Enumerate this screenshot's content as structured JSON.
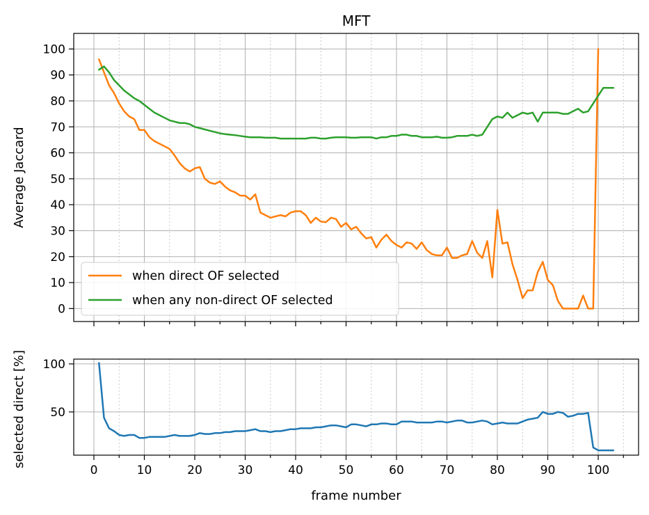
{
  "chart_data": [
    {
      "type": "line",
      "title": "MFT",
      "xlabel": "",
      "ylabel": "Average Jaccard",
      "xlim": [
        -4,
        108
      ],
      "ylim": [
        -5,
        106
      ],
      "xticks": [
        0,
        10,
        20,
        30,
        40,
        50,
        60,
        70,
        80,
        90,
        100
      ],
      "yticks": [
        0,
        10,
        20,
        30,
        40,
        50,
        60,
        70,
        80,
        90,
        100
      ],
      "grid": true,
      "legend": "lower-left",
      "series": [
        {
          "name": "when direct OF selected",
          "color": "#ff7f0e",
          "x": [
            1,
            2,
            3,
            4,
            5,
            6,
            7,
            8,
            9,
            10,
            11,
            12,
            13,
            14,
            15,
            16,
            17,
            18,
            19,
            20,
            21,
            22,
            23,
            24,
            25,
            26,
            27,
            28,
            29,
            30,
            31,
            32,
            33,
            34,
            35,
            36,
            37,
            38,
            39,
            40,
            41,
            42,
            43,
            44,
            45,
            46,
            47,
            48,
            49,
            50,
            51,
            52,
            53,
            54,
            55,
            56,
            57,
            58,
            59,
            60,
            61,
            62,
            63,
            64,
            65,
            66,
            67,
            68,
            69,
            70,
            71,
            72,
            73,
            74,
            75,
            76,
            77,
            78,
            79,
            80,
            81,
            82,
            83,
            84,
            85,
            86,
            87,
            88,
            89,
            90,
            91,
            92,
            93,
            94,
            95,
            96,
            97,
            98,
            99,
            100
          ],
          "y": [
            96,
            91,
            86,
            83,
            79,
            76,
            74,
            73,
            68.8,
            68.8,
            66,
            64.5,
            63.5,
            62.5,
            61.5,
            59,
            56,
            54,
            52.8,
            54,
            54.5,
            50,
            48.5,
            48,
            49,
            47,
            45.5,
            44.8,
            43.5,
            43.5,
            42,
            44,
            37,
            36,
            35,
            35.5,
            36,
            35.5,
            37,
            37.5,
            37.5,
            36,
            33,
            35,
            33.5,
            33.3,
            35,
            34.5,
            31.5,
            33,
            30.5,
            31.5,
            29,
            27,
            27.5,
            23.5,
            26.5,
            28.5,
            26,
            24.5,
            23.5,
            25.5,
            25,
            23,
            25.5,
            22.5,
            21,
            20.5,
            20.5,
            23.5,
            19.5,
            19.5,
            20.5,
            21,
            26,
            21.5,
            19.5,
            26,
            12,
            38,
            25,
            25.5,
            17,
            11,
            4,
            7,
            7,
            14,
            18,
            11,
            9,
            3,
            0,
            0,
            0,
            0,
            5,
            0,
            0,
            100
          ]
        },
        {
          "name": "when any non-direct OF selected",
          "color": "#2ca02c",
          "x": [
            1,
            2,
            3,
            4,
            5,
            6,
            7,
            8,
            9,
            10,
            11,
            12,
            13,
            14,
            15,
            16,
            17,
            18,
            19,
            20,
            21,
            22,
            23,
            24,
            25,
            26,
            27,
            28,
            29,
            30,
            31,
            32,
            33,
            34,
            35,
            36,
            37,
            38,
            39,
            40,
            41,
            42,
            43,
            44,
            45,
            46,
            47,
            48,
            49,
            50,
            51,
            52,
            53,
            54,
            55,
            56,
            57,
            58,
            59,
            60,
            61,
            62,
            63,
            64,
            65,
            66,
            67,
            68,
            69,
            70,
            71,
            72,
            73,
            74,
            75,
            76,
            77,
            78,
            79,
            80,
            81,
            82,
            83,
            84,
            85,
            86,
            87,
            88,
            89,
            90,
            91,
            92,
            93,
            94,
            95,
            96,
            97,
            98,
            99,
            100,
            101,
            102,
            103
          ],
          "y": [
            92,
            93.3,
            91,
            88,
            86,
            84,
            82.5,
            81,
            80,
            78.5,
            77,
            75.5,
            74.5,
            73.5,
            72.5,
            72,
            71.5,
            71.5,
            71,
            70,
            69.5,
            69,
            68.5,
            68,
            67.5,
            67.2,
            67,
            66.8,
            66.5,
            66.2,
            66,
            66,
            66,
            65.8,
            65.8,
            65.8,
            65.5,
            65.5,
            65.5,
            65.5,
            65.5,
            65.5,
            65.8,
            65.8,
            65.5,
            65.5,
            65.8,
            66,
            66,
            66,
            65.8,
            65.8,
            66,
            66,
            66,
            65.5,
            66,
            66,
            66.5,
            66.5,
            67,
            67,
            66.5,
            66.5,
            66,
            66,
            66,
            66.2,
            65.8,
            65.8,
            66,
            66.5,
            66.5,
            66.5,
            67,
            66.5,
            67,
            70,
            73,
            74,
            73.5,
            75.5,
            73.5,
            74.5,
            75.5,
            75,
            75.5,
            72,
            75.5,
            75.5,
            75.5,
            75.5,
            75,
            75,
            76,
            77,
            75.5,
            76,
            79,
            82,
            85,
            85,
            85
          ]
        }
      ]
    },
    {
      "type": "line",
      "title": "",
      "xlabel": "frame number",
      "ylabel": "selected direct [%]",
      "xlim": [
        -4,
        108
      ],
      "ylim": [
        5,
        105
      ],
      "xticks": [
        0,
        10,
        20,
        30,
        40,
        50,
        60,
        70,
        80,
        90,
        100
      ],
      "yticks": [
        50,
        100
      ],
      "grid": true,
      "series": [
        {
          "name": "selected direct",
          "color": "#1f77b4",
          "x": [
            1,
            2,
            3,
            4,
            5,
            6,
            7,
            8,
            9,
            10,
            11,
            12,
            13,
            14,
            15,
            16,
            17,
            18,
            19,
            20,
            21,
            22,
            23,
            24,
            25,
            26,
            27,
            28,
            29,
            30,
            31,
            32,
            33,
            34,
            35,
            36,
            37,
            38,
            39,
            40,
            41,
            42,
            43,
            44,
            45,
            46,
            47,
            48,
            49,
            50,
            51,
            52,
            53,
            54,
            55,
            56,
            57,
            58,
            59,
            60,
            61,
            62,
            63,
            64,
            65,
            66,
            67,
            68,
            69,
            70,
            71,
            72,
            73,
            74,
            75,
            76,
            77,
            78,
            79,
            80,
            81,
            82,
            83,
            84,
            85,
            86,
            87,
            88,
            89,
            90,
            91,
            92,
            93,
            94,
            95,
            96,
            97,
            98,
            99,
            100,
            101,
            102,
            103
          ],
          "y": [
            101,
            44,
            33,
            30,
            26,
            25,
            26,
            26,
            23,
            23,
            24,
            24,
            24,
            24,
            25,
            26,
            25,
            25,
            25,
            26,
            28,
            27,
            27,
            28,
            28,
            29,
            29,
            30,
            30,
            30,
            31,
            32,
            30,
            30,
            29,
            30,
            30,
            31,
            32,
            32,
            33,
            33,
            33,
            34,
            34,
            35,
            36,
            36,
            35,
            34,
            37,
            37,
            36,
            35,
            37,
            37,
            38,
            38,
            37,
            37,
            40,
            40,
            40,
            39,
            39,
            39,
            39,
            40,
            40,
            39,
            40,
            41,
            41,
            39,
            39,
            40,
            41,
            40,
            37,
            38,
            39,
            38,
            38,
            38,
            40,
            42,
            43,
            44,
            50,
            48,
            48,
            50,
            49,
            45,
            46,
            48,
            48,
            49,
            13,
            10,
            10,
            10,
            10
          ]
        }
      ]
    }
  ]
}
